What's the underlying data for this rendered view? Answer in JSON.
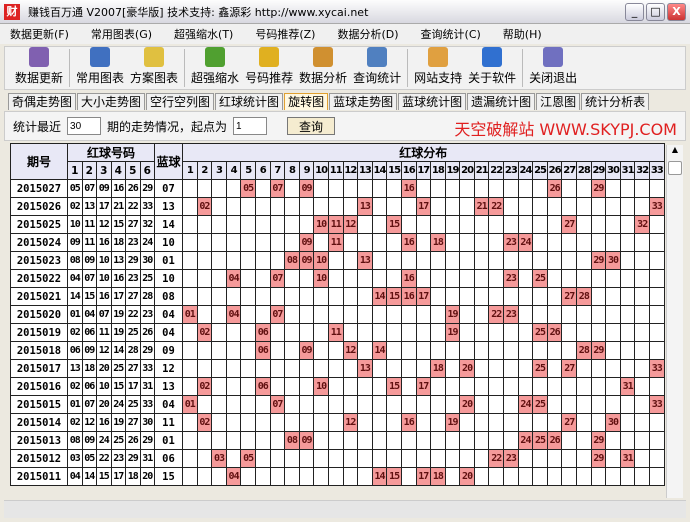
{
  "window": {
    "title": "赚钱百万通  V2007[豪华版]  技术支持: 鑫源彩 http://www.xycai.net",
    "logo": "财"
  },
  "menu": [
    "数据更新(F)",
    "常用图表(G)",
    "超强缩水(T)",
    "号码推荐(Z)",
    "数据分析(D)",
    "查询统计(C)",
    "帮助(H)"
  ],
  "toolbar": [
    {
      "label": "数据更新",
      "icon": "book-icon",
      "color": "#8060b0"
    },
    {
      "label": "常用图表",
      "icon": "chart-grid-icon",
      "color": "#4070c0"
    },
    {
      "label": "方案图表",
      "icon": "folder-icon",
      "color": "#e0c040"
    },
    {
      "label": "超强缩水",
      "icon": "gear-book-icon",
      "color": "#50a030"
    },
    {
      "label": "号码推荐",
      "icon": "coins-icon",
      "color": "#e0b020"
    },
    {
      "label": "数据分析",
      "icon": "clock-doc-icon",
      "color": "#d09030"
    },
    {
      "label": "查询统计",
      "icon": "table-icon",
      "color": "#5080c0"
    },
    {
      "label": "网站支持",
      "icon": "home-icon",
      "color": "#e0a040"
    },
    {
      "label": "关于软件",
      "icon": "info-icon",
      "color": "#3070d0"
    },
    {
      "label": "关闭退出",
      "icon": "exit-door-icon",
      "color": "#7070c0"
    }
  ],
  "tabs": [
    "奇偶走势图",
    "大小走势图",
    "空行空列图",
    "红球统计图",
    "旋转图",
    "蓝球走势图",
    "蓝球统计图",
    "遗漏统计图",
    "江恩图",
    "统计分析表"
  ],
  "active_tab": "旋转图",
  "query": {
    "prefix": "统计最近",
    "periods": "30",
    "middle": "期的走势情况，起点为",
    "start": "1",
    "button": "查询",
    "brand": "天空破解站 WWW.SKYPJ.COM"
  },
  "table": {
    "headers": {
      "issue": "期号",
      "red": "红球号码",
      "blue": "蓝球",
      "dist": "红球分布"
    },
    "red_cols": [
      "1",
      "2",
      "3",
      "4",
      "5",
      "6"
    ],
    "highlight_color": "#f59a9a",
    "rows": [
      {
        "issue": "2015027",
        "red": [
          "05",
          "07",
          "09",
          "16",
          "26",
          "29"
        ],
        "blue": "07"
      },
      {
        "issue": "2015026",
        "red": [
          "02",
          "13",
          "17",
          "21",
          "22",
          "33"
        ],
        "blue": "13"
      },
      {
        "issue": "2015025",
        "red": [
          "10",
          "11",
          "12",
          "15",
          "27",
          "32"
        ],
        "blue": "14"
      },
      {
        "issue": "2015024",
        "red": [
          "09",
          "11",
          "16",
          "18",
          "23",
          "24"
        ],
        "blue": "10"
      },
      {
        "issue": "2015023",
        "red": [
          "08",
          "09",
          "10",
          "13",
          "29",
          "30"
        ],
        "blue": "01"
      },
      {
        "issue": "2015022",
        "red": [
          "04",
          "07",
          "10",
          "16",
          "23",
          "25"
        ],
        "blue": "10"
      },
      {
        "issue": "2015021",
        "red": [
          "14",
          "15",
          "16",
          "17",
          "27",
          "28"
        ],
        "blue": "08"
      },
      {
        "issue": "2015020",
        "red": [
          "01",
          "04",
          "07",
          "19",
          "22",
          "23"
        ],
        "blue": "04"
      },
      {
        "issue": "2015019",
        "red": [
          "02",
          "06",
          "11",
          "19",
          "25",
          "26"
        ],
        "blue": "04"
      },
      {
        "issue": "2015018",
        "red": [
          "06",
          "09",
          "12",
          "14",
          "28",
          "29"
        ],
        "blue": "09"
      },
      {
        "issue": "2015017",
        "red": [
          "13",
          "18",
          "20",
          "25",
          "27",
          "33"
        ],
        "blue": "12"
      },
      {
        "issue": "2015016",
        "red": [
          "02",
          "06",
          "10",
          "15",
          "17",
          "31"
        ],
        "blue": "13"
      },
      {
        "issue": "2015015",
        "red": [
          "01",
          "07",
          "20",
          "24",
          "25",
          "33"
        ],
        "blue": "04"
      },
      {
        "issue": "2015014",
        "red": [
          "02",
          "12",
          "16",
          "19",
          "27",
          "30"
        ],
        "blue": "11"
      },
      {
        "issue": "2015013",
        "red": [
          "08",
          "09",
          "24",
          "25",
          "26",
          "29"
        ],
        "blue": "01"
      },
      {
        "issue": "2015012",
        "red": [
          "03",
          "05",
          "22",
          "23",
          "29",
          "31"
        ],
        "blue": "06"
      },
      {
        "issue": "2015011",
        "red": [
          "04",
          "14",
          "15",
          "17",
          "18",
          "20"
        ],
        "blue": "15"
      }
    ]
  }
}
